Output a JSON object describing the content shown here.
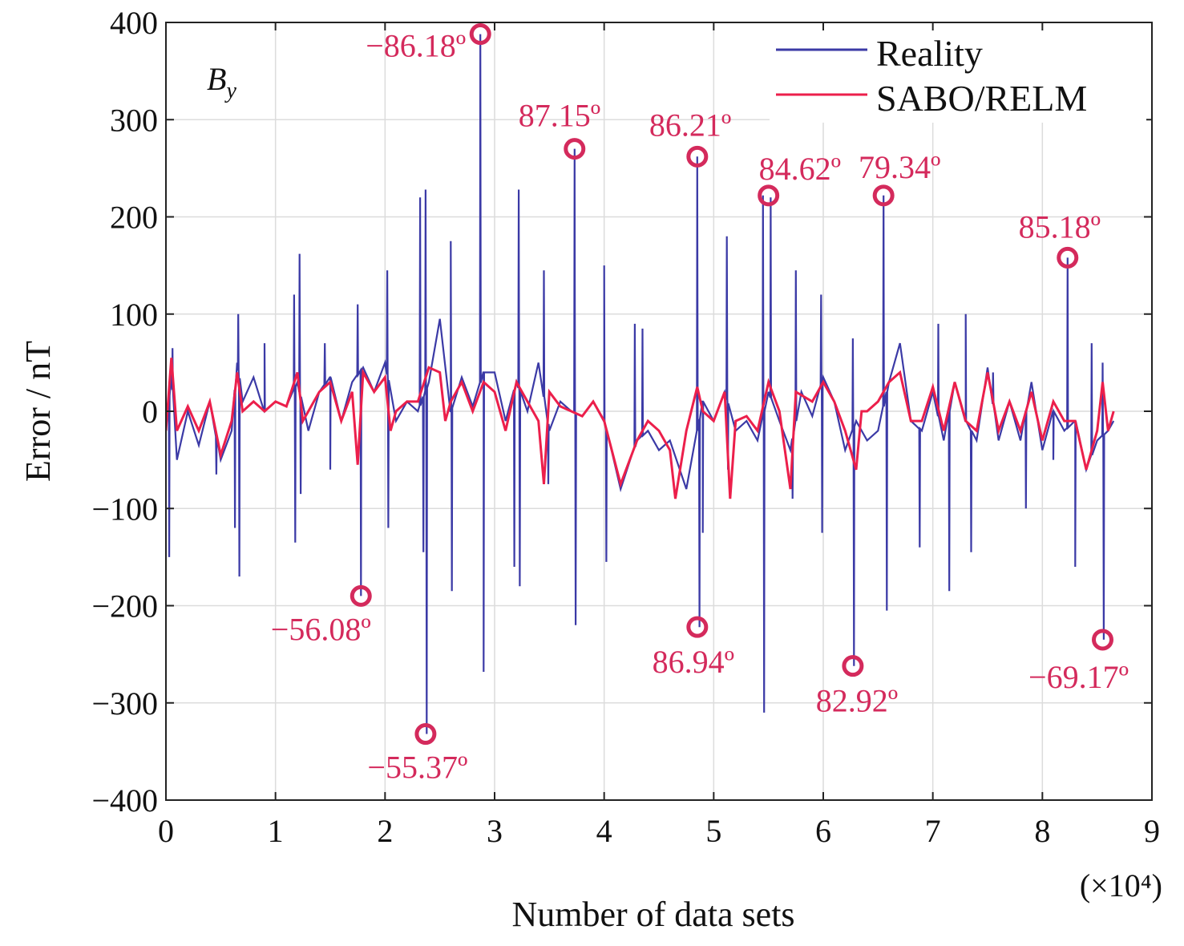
{
  "chart_data": {
    "type": "line",
    "title": "",
    "panel_label": "B",
    "panel_label_sub": "y",
    "xlabel": "Number of data sets",
    "x_multiplier": "(×10⁴)",
    "ylabel": "Error / nT",
    "xlim": [
      0,
      9
    ],
    "ylim": [
      -400,
      400
    ],
    "xticks": [
      0,
      1,
      2,
      3,
      4,
      5,
      6,
      7,
      8,
      9
    ],
    "yticks": [
      400,
      300,
      200,
      100,
      0,
      -100,
      -200,
      -300,
      -400
    ],
    "ytick_labels": [
      "400",
      "300",
      "200",
      "100",
      "0",
      "−100",
      "−200",
      "−300",
      "−400"
    ],
    "grid": true,
    "legend_position": "top-right",
    "colors": {
      "reality": "#3b3aa6",
      "sabo": "#ec1f4b",
      "annotation": "#d42a5c"
    },
    "series": [
      {
        "name": "Reality",
        "baseline": [
          [
            0,
            -20
          ],
          [
            0.05,
            40
          ],
          [
            0.1,
            -50
          ],
          [
            0.2,
            0
          ],
          [
            0.3,
            -35
          ],
          [
            0.4,
            10
          ],
          [
            0.5,
            -50
          ],
          [
            0.6,
            -20
          ],
          [
            0.65,
            50
          ],
          [
            0.7,
            10
          ],
          [
            0.8,
            35
          ],
          [
            0.9,
            0
          ],
          [
            1.0,
            10
          ],
          [
            1.1,
            5
          ],
          [
            1.2,
            30
          ],
          [
            1.3,
            -20
          ],
          [
            1.4,
            20
          ],
          [
            1.5,
            35
          ],
          [
            1.6,
            -10
          ],
          [
            1.7,
            30
          ],
          [
            1.8,
            45
          ],
          [
            1.9,
            20
          ],
          [
            2.0,
            50
          ],
          [
            2.1,
            -10
          ],
          [
            2.2,
            10
          ],
          [
            2.3,
            0
          ],
          [
            2.4,
            30
          ],
          [
            2.5,
            95
          ],
          [
            2.6,
            0
          ],
          [
            2.7,
            35
          ],
          [
            2.8,
            5
          ],
          [
            2.9,
            40
          ],
          [
            3.0,
            40
          ],
          [
            3.1,
            -10
          ],
          [
            3.2,
            30
          ],
          [
            3.3,
            0
          ],
          [
            3.4,
            50
          ],
          [
            3.5,
            -20
          ],
          [
            3.6,
            10
          ],
          [
            3.7,
            0
          ],
          [
            3.8,
            -5
          ],
          [
            3.9,
            10
          ],
          [
            4.0,
            -10
          ],
          [
            4.15,
            -80
          ],
          [
            4.3,
            -30
          ],
          [
            4.4,
            -20
          ],
          [
            4.5,
            -40
          ],
          [
            4.6,
            -30
          ],
          [
            4.75,
            -80
          ],
          [
            4.9,
            10
          ],
          [
            5.0,
            -10
          ],
          [
            5.1,
            20
          ],
          [
            5.2,
            -20
          ],
          [
            5.3,
            -10
          ],
          [
            5.4,
            -30
          ],
          [
            5.5,
            20
          ],
          [
            5.6,
            -10
          ],
          [
            5.7,
            -40
          ],
          [
            5.8,
            20
          ],
          [
            5.9,
            -5
          ],
          [
            6.0,
            35
          ],
          [
            6.1,
            10
          ],
          [
            6.2,
            -40
          ],
          [
            6.3,
            -10
          ],
          [
            6.4,
            -30
          ],
          [
            6.5,
            -20
          ],
          [
            6.6,
            30
          ],
          [
            6.7,
            70
          ],
          [
            6.8,
            -10
          ],
          [
            6.9,
            -20
          ],
          [
            7.0,
            20
          ],
          [
            7.1,
            -30
          ],
          [
            7.2,
            30
          ],
          [
            7.3,
            -10
          ],
          [
            7.4,
            -30
          ],
          [
            7.5,
            45
          ],
          [
            7.6,
            -30
          ],
          [
            7.7,
            10
          ],
          [
            7.8,
            -30
          ],
          [
            7.9,
            30
          ],
          [
            8.0,
            -40
          ],
          [
            8.1,
            0
          ],
          [
            8.2,
            -20
          ],
          [
            8.3,
            -10
          ],
          [
            8.4,
            -60
          ],
          [
            8.5,
            -30
          ],
          [
            8.6,
            -20
          ],
          [
            8.65,
            -10
          ]
        ],
        "spikes": [
          [
            0.03,
            -150
          ],
          [
            0.06,
            65
          ],
          [
            0.46,
            -65
          ],
          [
            0.63,
            -120
          ],
          [
            0.66,
            100
          ],
          [
            0.67,
            -170
          ],
          [
            0.9,
            70
          ],
          [
            1.17,
            120
          ],
          [
            1.18,
            -135
          ],
          [
            1.22,
            162
          ],
          [
            1.23,
            -85
          ],
          [
            1.45,
            70
          ],
          [
            1.5,
            -60
          ],
          [
            1.75,
            110
          ],
          [
            1.78,
            -190
          ],
          [
            2.02,
            145
          ],
          [
            2.03,
            -120
          ],
          [
            2.32,
            220
          ],
          [
            2.35,
            -145
          ],
          [
            2.37,
            228
          ],
          [
            2.38,
            -332
          ],
          [
            2.6,
            175
          ],
          [
            2.61,
            -185
          ],
          [
            2.87,
            388
          ],
          [
            2.9,
            -268
          ],
          [
            3.18,
            -160
          ],
          [
            3.22,
            228
          ],
          [
            3.23,
            -180
          ],
          [
            3.45,
            145
          ],
          [
            3.49,
            -75
          ],
          [
            3.73,
            270
          ],
          [
            3.74,
            -220
          ],
          [
            4.0,
            150
          ],
          [
            4.02,
            -155
          ],
          [
            4.28,
            90
          ],
          [
            4.35,
            85
          ],
          [
            4.85,
            262
          ],
          [
            4.87,
            -222
          ],
          [
            4.9,
            -125
          ],
          [
            5.12,
            180
          ],
          [
            5.13,
            -60
          ],
          [
            5.45,
            222
          ],
          [
            5.46,
            -310
          ],
          [
            5.52,
            220
          ],
          [
            5.72,
            -90
          ],
          [
            5.75,
            145
          ],
          [
            5.98,
            120
          ],
          [
            5.99,
            -125
          ],
          [
            6.27,
            75
          ],
          [
            6.28,
            -262
          ],
          [
            6.55,
            222
          ],
          [
            6.58,
            -205
          ],
          [
            6.88,
            -140
          ],
          [
            7.05,
            90
          ],
          [
            7.15,
            -185
          ],
          [
            7.3,
            100
          ],
          [
            7.35,
            -145
          ],
          [
            7.55,
            40
          ],
          [
            7.85,
            -100
          ],
          [
            8.1,
            -50
          ],
          [
            8.23,
            158
          ],
          [
            8.3,
            -160
          ],
          [
            8.45,
            70
          ],
          [
            8.55,
            50
          ],
          [
            8.56,
            -235
          ]
        ]
      },
      {
        "name": "SABO/RELM",
        "points": [
          [
            0,
            -20
          ],
          [
            0.05,
            55
          ],
          [
            0.1,
            -20
          ],
          [
            0.2,
            5
          ],
          [
            0.3,
            -20
          ],
          [
            0.4,
            10
          ],
          [
            0.5,
            -45
          ],
          [
            0.6,
            -10
          ],
          [
            0.65,
            40
          ],
          [
            0.7,
            0
          ],
          [
            0.8,
            10
          ],
          [
            0.9,
            0
          ],
          [
            1.0,
            10
          ],
          [
            1.1,
            5
          ],
          [
            1.2,
            40
          ],
          [
            1.25,
            -10
          ],
          [
            1.3,
            0
          ],
          [
            1.4,
            20
          ],
          [
            1.5,
            30
          ],
          [
            1.6,
            -10
          ],
          [
            1.7,
            20
          ],
          [
            1.75,
            -55
          ],
          [
            1.8,
            40
          ],
          [
            1.9,
            20
          ],
          [
            2.0,
            35
          ],
          [
            2.05,
            -20
          ],
          [
            2.1,
            0
          ],
          [
            2.2,
            10
          ],
          [
            2.3,
            10
          ],
          [
            2.4,
            45
          ],
          [
            2.5,
            40
          ],
          [
            2.55,
            -10
          ],
          [
            2.6,
            10
          ],
          [
            2.7,
            30
          ],
          [
            2.8,
            0
          ],
          [
            2.9,
            30
          ],
          [
            3.0,
            20
          ],
          [
            3.1,
            -20
          ],
          [
            3.2,
            30
          ],
          [
            3.3,
            10
          ],
          [
            3.4,
            -10
          ],
          [
            3.45,
            -75
          ],
          [
            3.5,
            20
          ],
          [
            3.6,
            5
          ],
          [
            3.7,
            0
          ],
          [
            3.8,
            -5
          ],
          [
            3.9,
            10
          ],
          [
            4.0,
            -10
          ],
          [
            4.15,
            -75
          ],
          [
            4.3,
            -30
          ],
          [
            4.4,
            -10
          ],
          [
            4.5,
            -20
          ],
          [
            4.6,
            -40
          ],
          [
            4.65,
            -90
          ],
          [
            4.75,
            -20
          ],
          [
            4.85,
            25
          ],
          [
            4.9,
            0
          ],
          [
            5.0,
            -10
          ],
          [
            5.1,
            20
          ],
          [
            5.15,
            -90
          ],
          [
            5.2,
            -10
          ],
          [
            5.3,
            -5
          ],
          [
            5.4,
            -20
          ],
          [
            5.5,
            30
          ],
          [
            5.6,
            0
          ],
          [
            5.7,
            -80
          ],
          [
            5.75,
            20
          ],
          [
            5.9,
            10
          ],
          [
            6.0,
            30
          ],
          [
            6.1,
            10
          ],
          [
            6.2,
            -20
          ],
          [
            6.3,
            -60
          ],
          [
            6.35,
            0
          ],
          [
            6.4,
            0
          ],
          [
            6.5,
            10
          ],
          [
            6.6,
            30
          ],
          [
            6.7,
            40
          ],
          [
            6.8,
            -10
          ],
          [
            6.9,
            -10
          ],
          [
            7.0,
            25
          ],
          [
            7.1,
            -20
          ],
          [
            7.2,
            30
          ],
          [
            7.3,
            -10
          ],
          [
            7.4,
            -20
          ],
          [
            7.5,
            40
          ],
          [
            7.6,
            -20
          ],
          [
            7.7,
            10
          ],
          [
            7.8,
            -20
          ],
          [
            7.9,
            20
          ],
          [
            8.0,
            -30
          ],
          [
            8.1,
            10
          ],
          [
            8.2,
            -10
          ],
          [
            8.3,
            -10
          ],
          [
            8.4,
            -60
          ],
          [
            8.5,
            -20
          ],
          [
            8.55,
            30
          ],
          [
            8.6,
            -20
          ],
          [
            8.65,
            0
          ]
        ]
      }
    ],
    "annotations": [
      {
        "x": 2.87,
        "y": 388,
        "label": "−86.18º"
      },
      {
        "x": 3.73,
        "y": 270,
        "label": "87.15º"
      },
      {
        "x": 4.85,
        "y": 262,
        "label": "86.21º"
      },
      {
        "x": 5.5,
        "y": 222,
        "label": "84.62º"
      },
      {
        "x": 6.55,
        "y": 222,
        "label": "79.34º"
      },
      {
        "x": 8.23,
        "y": 158,
        "label": "85.18º"
      },
      {
        "x": 1.78,
        "y": -190,
        "label": "−56.08º"
      },
      {
        "x": 2.37,
        "y": -332,
        "label": "−55.37º"
      },
      {
        "x": 4.85,
        "y": -222,
        "label": "86.94º"
      },
      {
        "x": 6.27,
        "y": -262,
        "label": "82.92º"
      },
      {
        "x": 8.55,
        "y": -235,
        "label": "−69.17º"
      }
    ]
  }
}
